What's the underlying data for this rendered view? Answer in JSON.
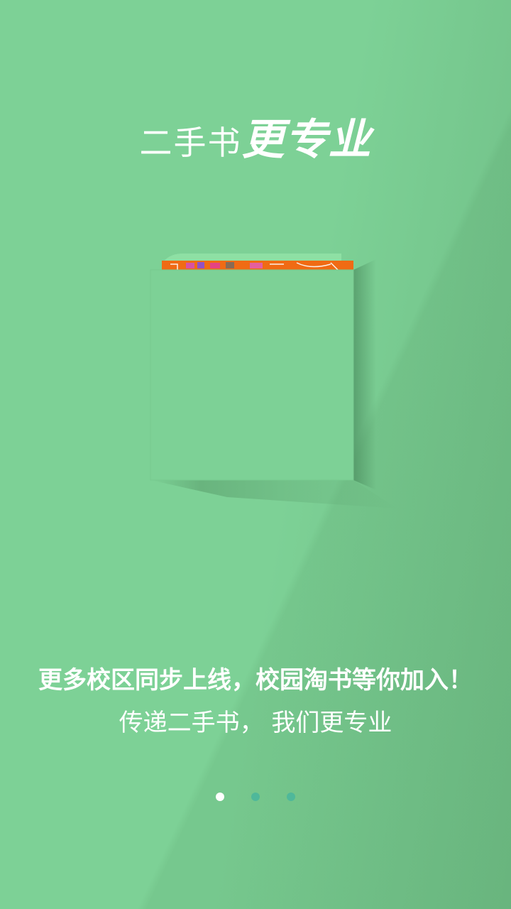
{
  "headline": {
    "light": "二手书",
    "bold": "更专业"
  },
  "tagline": {
    "main": "更多校区同步上线，校园淘书等你加入！",
    "sub": "传递二手书， 我们更专业"
  },
  "pager": {
    "count": 3,
    "active_index": 0
  },
  "colors": {
    "background": "#7dd196",
    "book_cover": "#7dd196",
    "book_pages": "#f06b14",
    "dot_inactive": "#4fb89a",
    "dot_active": "#ffffff"
  }
}
